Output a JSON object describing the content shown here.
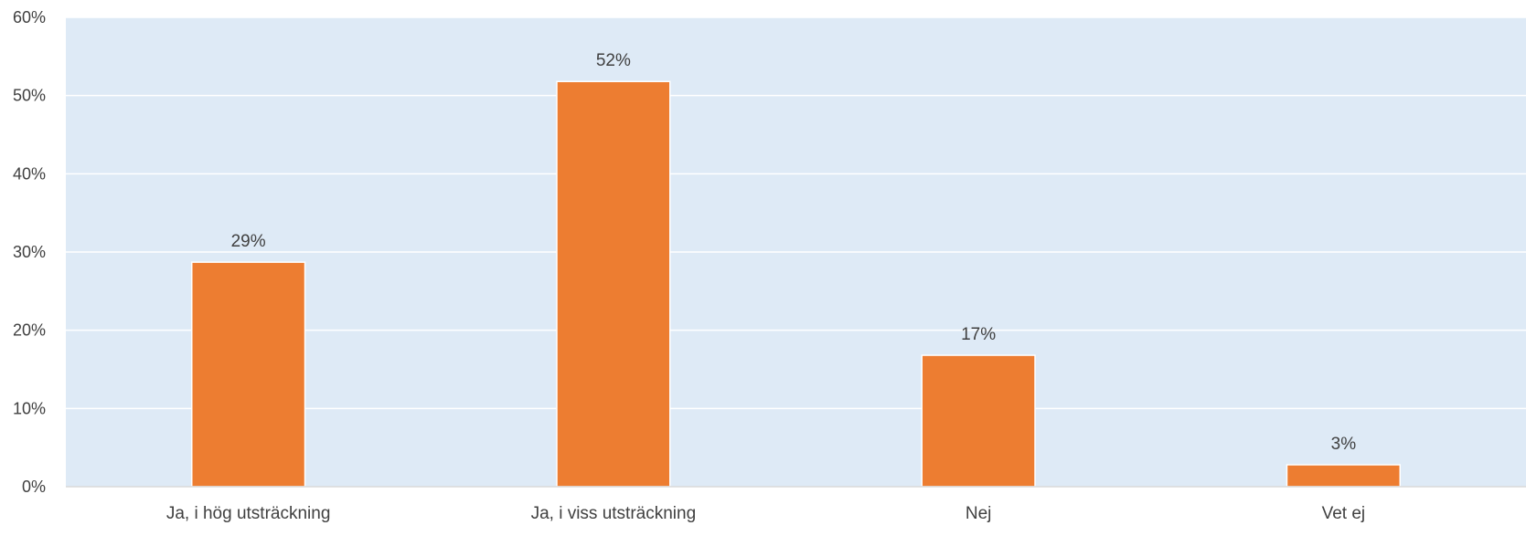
{
  "colors": {
    "bar": "#ED7D31",
    "plot_background": "#DEEAF6",
    "gridline": "#FFFFFF",
    "text": "#404040"
  },
  "chart_data": {
    "type": "bar",
    "categories": [
      "Ja, i hög utsträckning",
      "Ja, i viss utsträckning",
      "Nej",
      "Vet ej"
    ],
    "values": [
      29,
      52,
      17,
      3
    ],
    "bar_values_precise": [
      28.7,
      51.8,
      16.8,
      2.8
    ],
    "data_labels": [
      "29%",
      "52%",
      "17%",
      "3%"
    ],
    "y_ticks": [
      "0%",
      "10%",
      "20%",
      "30%",
      "40%",
      "50%",
      "60%"
    ],
    "ylim": [
      0,
      60
    ],
    "y_unit": "%",
    "grid": true,
    "legend": "none"
  }
}
